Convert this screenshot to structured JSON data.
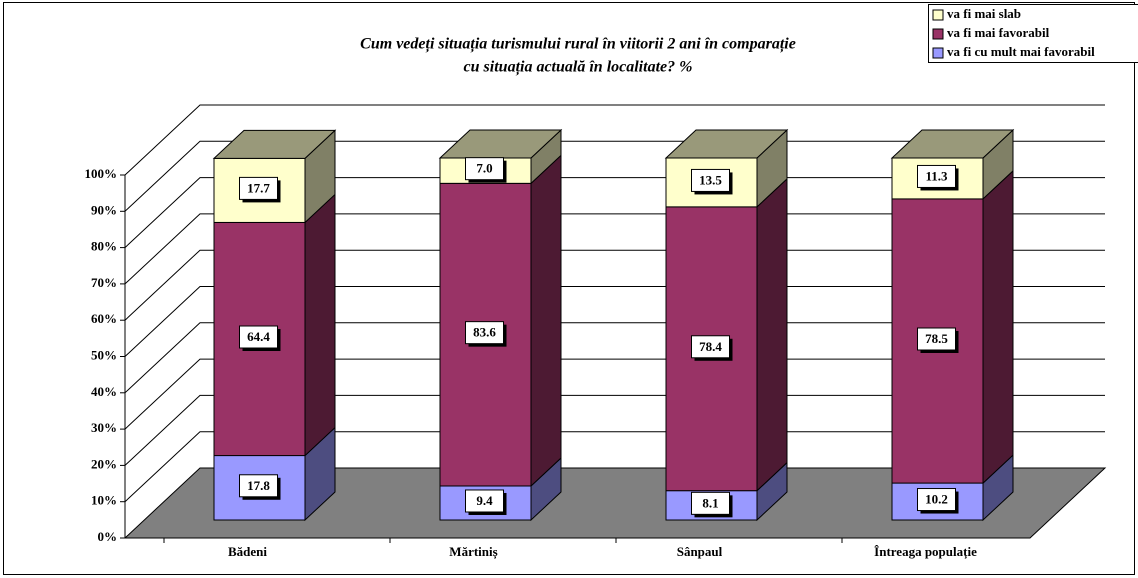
{
  "chart_data": {
    "type": "bar3d_stacked",
    "title": [
      "Cum vedeți situația turismului rural în viitorii 2 ani în comparație",
      "cu situația actuală în localitate? %"
    ],
    "categories": [
      "Bădeni",
      "Mărtiniș",
      "Sânpaul",
      "Întreaga populație"
    ],
    "series": [
      {
        "name": "va fi cu mult mai favorabil",
        "color": "#9999ff",
        "values": [
          17.8,
          9.4,
          8.1,
          10.2
        ],
        "value_labels": [
          "17.8",
          "9.4",
          "8.1",
          "10.2"
        ]
      },
      {
        "name": "va fi mai favorabil",
        "color": "#993366",
        "values": [
          64.4,
          83.6,
          78.4,
          78.5
        ],
        "value_labels": [
          "64.4",
          "83.6",
          "78.4",
          "78.5"
        ]
      },
      {
        "name": "va fi mai slab",
        "color": "#ffffcc",
        "values": [
          17.7,
          7.0,
          13.5,
          11.3
        ],
        "value_labels": [
          "17.7",
          "7.0",
          "13.5",
          "11.3"
        ]
      }
    ],
    "ylim": [
      0,
      100
    ],
    "yticks": [
      {
        "value": 0,
        "label": "0%"
      },
      {
        "value": 10,
        "label": "10%"
      },
      {
        "value": 20,
        "label": "20%"
      },
      {
        "value": 30,
        "label": "30%"
      },
      {
        "value": 40,
        "label": "40%"
      },
      {
        "value": 50,
        "label": "50%"
      },
      {
        "value": 60,
        "label": "60%"
      },
      {
        "value": 70,
        "label": "70%"
      },
      {
        "value": 80,
        "label": "80%"
      },
      {
        "value": 90,
        "label": "90%"
      },
      {
        "value": 100,
        "label": "100%"
      }
    ],
    "grid": true,
    "legend": "top-right"
  }
}
